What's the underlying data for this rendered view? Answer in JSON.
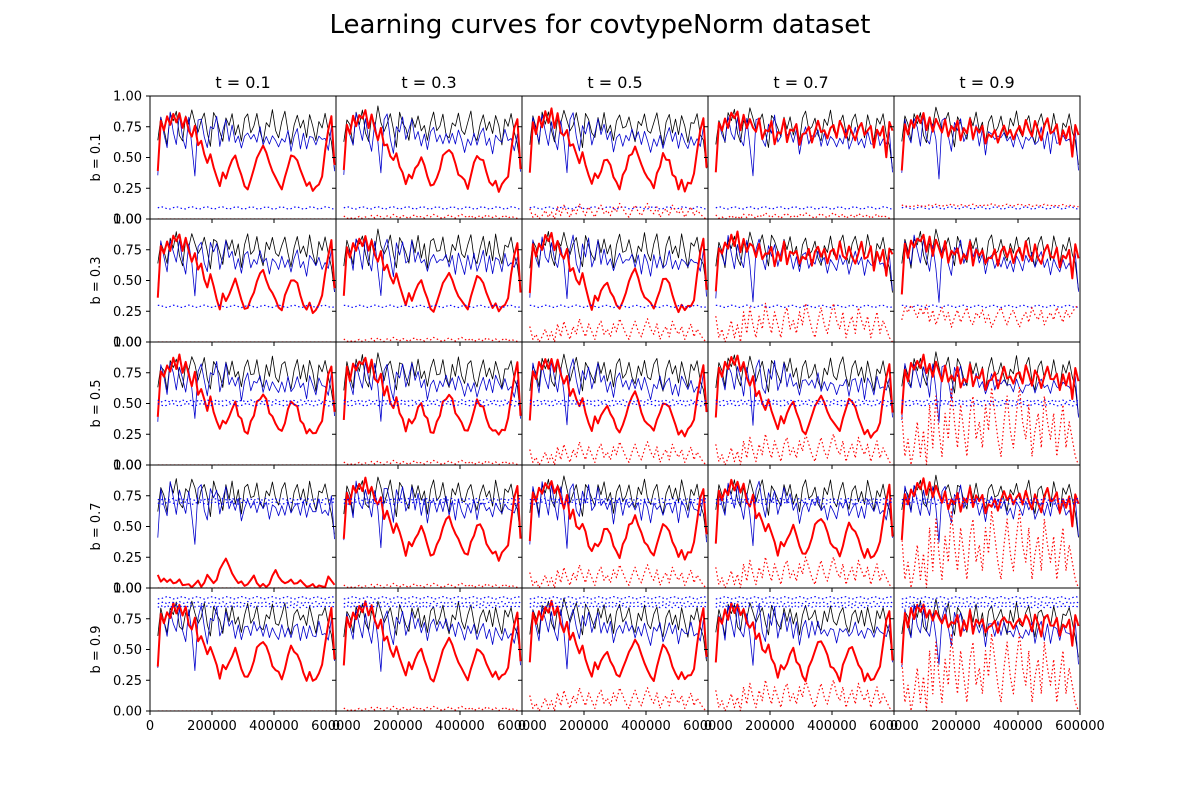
{
  "title": "Learning curves for covtypeNorm dataset",
  "chart_data": {
    "type": "line",
    "title": "Learning curves for covtypeNorm dataset",
    "grid": false,
    "panels": {
      "rows": 5,
      "cols": 5
    },
    "col_labels": [
      "t = 0.1",
      "t = 0.3",
      "t = 0.5",
      "t = 0.7",
      "t = 0.9"
    ],
    "row_labels": [
      "b = 0.1",
      "b = 0.3",
      "b = 0.5",
      "b = 0.7",
      "b = 0.9"
    ],
    "b_values": [
      0.1,
      0.3,
      0.5,
      0.7,
      0.9
    ],
    "t_values": [
      0.1,
      0.3,
      0.5,
      0.7,
      0.9
    ],
    "xlim": [
      0,
      600000
    ],
    "ylim": [
      0,
      1.0
    ],
    "x_ticks": [
      0,
      200000,
      400000,
      600000
    ],
    "x_tick_labels": [
      "0",
      "200000",
      "400000",
      "600000"
    ],
    "y_ticks": [
      0.0,
      0.25,
      0.5,
      0.75,
      1.0
    ],
    "y_tick_labels": [
      "0.00",
      "0.25",
      "0.50",
      "0.75",
      "1.00"
    ],
    "x_start": 25000,
    "x_step": 10000,
    "black_curve": [
      0.62,
      0.82,
      0.75,
      0.62,
      0.85,
      0.78,
      0.88,
      0.7,
      0.64,
      0.82,
      0.76,
      0.9,
      0.8,
      0.7,
      0.78,
      0.86,
      0.72,
      0.6,
      0.85,
      0.8,
      0.72,
      0.65,
      0.82,
      0.74,
      0.85,
      0.7,
      0.78,
      0.62,
      0.8,
      0.86,
      0.72,
      0.76,
      0.84,
      0.7,
      0.64,
      0.8,
      0.74,
      0.87,
      0.72,
      0.68,
      0.8,
      0.86,
      0.7,
      0.62,
      0.78,
      0.84,
      0.72,
      0.8,
      0.68,
      0.86,
      0.74,
      0.62,
      0.8,
      0.76,
      0.86,
      0.7,
      0.62,
      0.42
    ],
    "blue_curve": [
      0.38,
      0.8,
      0.7,
      0.6,
      0.84,
      0.72,
      0.62,
      0.82,
      0.68,
      0.58,
      0.8,
      0.62,
      0.35,
      0.78,
      0.84,
      0.66,
      0.56,
      0.78,
      0.72,
      0.82,
      0.62,
      0.7,
      0.8,
      0.66,
      0.74,
      0.62,
      0.7,
      0.55,
      0.68,
      0.72,
      0.62,
      0.7,
      0.64,
      0.72,
      0.62,
      0.68,
      0.58,
      0.7,
      0.64,
      0.56,
      0.68,
      0.62,
      0.7,
      0.58,
      0.66,
      0.72,
      0.6,
      0.68,
      0.56,
      0.7,
      0.64,
      0.6,
      0.7,
      0.62,
      0.66,
      0.58,
      0.72,
      0.4
    ],
    "red_pattern_a": [
      0.38,
      0.78,
      0.7,
      0.82,
      0.76,
      0.86,
      0.8,
      0.88,
      0.76,
      0.84,
      0.72,
      0.66,
      0.74,
      0.58,
      0.62,
      0.52,
      0.46,
      0.54,
      0.44,
      0.36,
      0.28,
      0.38,
      0.32,
      0.4,
      0.46,
      0.5,
      0.42,
      0.36,
      0.28,
      0.26,
      0.34,
      0.42,
      0.5,
      0.54,
      0.58,
      0.52,
      0.44,
      0.38,
      0.34,
      0.3,
      0.26,
      0.36,
      0.44,
      0.52,
      0.5,
      0.46,
      0.38,
      0.32,
      0.26,
      0.3,
      0.24,
      0.28,
      0.3,
      0.36,
      0.56,
      0.72,
      0.82,
      0.42
    ],
    "red_pattern_b": [
      0.4,
      0.78,
      0.7,
      0.82,
      0.76,
      0.86,
      0.8,
      0.88,
      0.74,
      0.84,
      0.72,
      0.82,
      0.76,
      0.7,
      0.8,
      0.66,
      0.74,
      0.7,
      0.78,
      0.62,
      0.72,
      0.68,
      0.8,
      0.64,
      0.74,
      0.7,
      0.76,
      0.62,
      0.7,
      0.68,
      0.74,
      0.64,
      0.72,
      0.78,
      0.7,
      0.74,
      0.66,
      0.72,
      0.76,
      0.68,
      0.8,
      0.72,
      0.66,
      0.78,
      0.7,
      0.62,
      0.74,
      0.8,
      0.68,
      0.7,
      0.76,
      0.6,
      0.72,
      0.66,
      0.76,
      0.52,
      0.78,
      0.7
    ],
    "red_low_b07_t01": [
      0.1,
      0.04,
      0.06,
      0.03,
      0.05,
      0.02,
      0.03,
      0.06,
      0.02,
      0.03,
      0.04,
      0.02,
      0.05,
      0.08,
      0.03,
      0.06,
      0.12,
      0.08,
      0.04,
      0.06,
      0.14,
      0.18,
      0.22,
      0.16,
      0.1,
      0.06,
      0.03,
      0.05,
      0.02,
      0.04,
      0.08,
      0.12,
      0.06,
      0.03,
      0.05,
      0.02,
      0.04,
      0.1,
      0.14,
      0.08,
      0.04,
      0.02,
      0.03,
      0.05,
      0.02,
      0.03,
      0.06,
      0.04,
      0.02,
      0.03,
      0.05,
      0.02,
      0.04,
      0.03,
      0.02,
      0.1,
      0.06,
      0.02
    ],
    "dotted_red_pattern": [
      0.3,
      0.05,
      0.15,
      0.0,
      0.1,
      0.25,
      0.05,
      0.2,
      0.0,
      0.35,
      0.1,
      0.4,
      0.2,
      0.05,
      0.3,
      0.15,
      0.45,
      0.25,
      0.1,
      0.35,
      0.2,
      0.05,
      0.3,
      0.4,
      0.15,
      0.25,
      0.1,
      0.35,
      0.2,
      0.45,
      0.3,
      0.15,
      0.05,
      0.25,
      0.4,
      0.2,
      0.1,
      0.3,
      0.45,
      0.25,
      0.15,
      0.35,
      0.05,
      0.2,
      0.3,
      0.1,
      0.4,
      0.25,
      0.15,
      0.3,
      0.05,
      0.2,
      0.35,
      0.1,
      0.25,
      0.15,
      0.05,
      0.0
    ],
    "series": [
      {
        "color": "#000000",
        "style": "solid",
        "width": 0.8
      },
      {
        "color": "#0000cc",
        "style": "solid",
        "width": 0.8
      },
      {
        "color": "#ff0000",
        "style": "solid",
        "width": 2
      },
      {
        "color": "#0000ff",
        "style": "dotted",
        "width": 1.2
      },
      {
        "color": "#ff0000",
        "style": "dotted",
        "width": 1.2
      }
    ]
  }
}
